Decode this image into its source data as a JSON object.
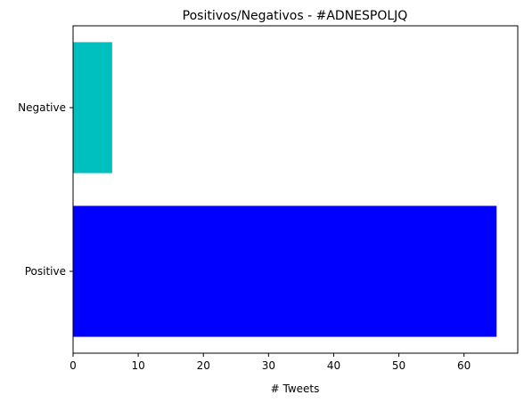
{
  "chart_data": {
    "type": "bar",
    "orientation": "horizontal",
    "title": "Positivos/Negativos - #ADNESPOLJQ",
    "xlabel": "# Tweets",
    "ylabel": "",
    "categories": [
      "Positive",
      "Negative"
    ],
    "values": [
      65,
      6
    ],
    "colors": [
      "#0000ff",
      "#00bfbf"
    ],
    "xlim": [
      0,
      68.25
    ],
    "xticks": [
      "0",
      "10",
      "20",
      "30",
      "40",
      "50",
      "60"
    ],
    "grid": false,
    "legend": "none"
  }
}
